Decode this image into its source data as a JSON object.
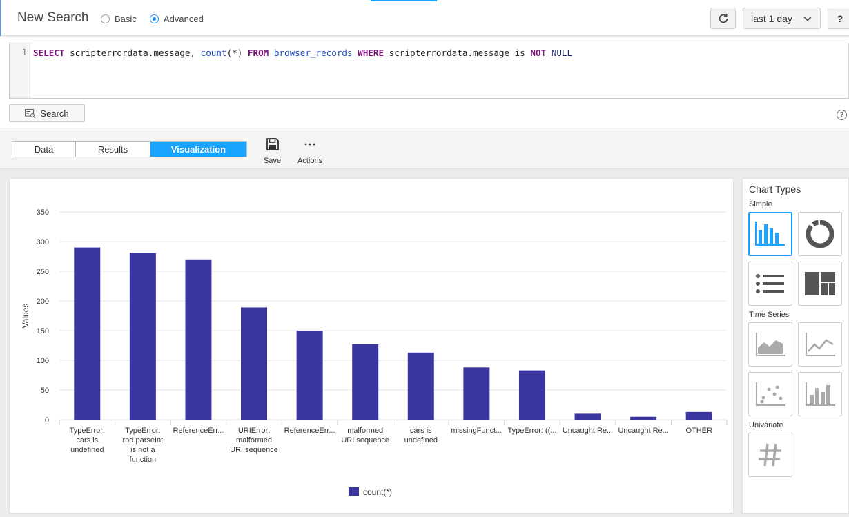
{
  "header": {
    "title": "New Search",
    "mode_basic": "Basic",
    "mode_advanced": "Advanced",
    "selected_mode": "Advanced",
    "time_range": "last 1 day",
    "help_label": "?"
  },
  "editor": {
    "line_number": "1",
    "query": "SELECT scripterrordata.message, count(*) FROM browser_records WHERE scripterrordata.message is NOT NULL",
    "tokens": [
      {
        "t": "SELECT",
        "c": "kw"
      },
      {
        "t": " scripterrordata.message, ",
        "c": ""
      },
      {
        "t": "count",
        "c": "fn"
      },
      {
        "t": "(*) ",
        "c": ""
      },
      {
        "t": "FROM",
        "c": "kw"
      },
      {
        "t": " ",
        "c": ""
      },
      {
        "t": "browser_records",
        "c": "tbl"
      },
      {
        "t": " ",
        "c": ""
      },
      {
        "t": "WHERE",
        "c": "kw"
      },
      {
        "t": " scripterrordata.message is ",
        "c": ""
      },
      {
        "t": "NOT",
        "c": "kw"
      },
      {
        "t": " ",
        "c": ""
      },
      {
        "t": "NULL",
        "c": "lit"
      }
    ]
  },
  "search_button": "Search",
  "help_icon": "?",
  "tabs": [
    {
      "label": "Data",
      "active": false
    },
    {
      "label": "Results",
      "active": false
    },
    {
      "label": "Visualization",
      "active": true
    }
  ],
  "tools": {
    "save": "Save",
    "actions": "Actions"
  },
  "chart_data": {
    "type": "bar",
    "ylabel": "Values",
    "xlabel": "",
    "ylim": [
      0,
      350
    ],
    "yticks": [
      0,
      50,
      100,
      150,
      200,
      250,
      300,
      350
    ],
    "categories": [
      [
        "TypeError:",
        "cars is",
        "undefined"
      ],
      [
        "TypeError:",
        "rnd.parseInt",
        "is not a",
        "function"
      ],
      [
        "ReferenceErr..."
      ],
      [
        "URIError:",
        "malformed",
        "URI sequence"
      ],
      [
        "ReferenceErr..."
      ],
      [
        "malformed",
        "URI sequence"
      ],
      [
        "cars is",
        "undefined"
      ],
      [
        "missingFunct..."
      ],
      [
        "TypeError: ((..."
      ],
      [
        "Uncaught Re..."
      ],
      [
        "Uncaught Re..."
      ],
      [
        "OTHER"
      ]
    ],
    "series": [
      {
        "name": "count(*)",
        "color": "#3b35a0",
        "values": [
          290,
          281,
          270,
          189,
          150,
          127,
          113,
          88,
          83,
          10,
          5,
          13
        ]
      }
    ],
    "grid": true,
    "legend": "bottom-center"
  },
  "chart_types": {
    "title": "Chart Types",
    "sections": {
      "simple": "Simple",
      "time_series": "Time Series",
      "univariate": "Univariate"
    },
    "active": "bar-chart-icon",
    "accent": "#1aa3ff"
  }
}
